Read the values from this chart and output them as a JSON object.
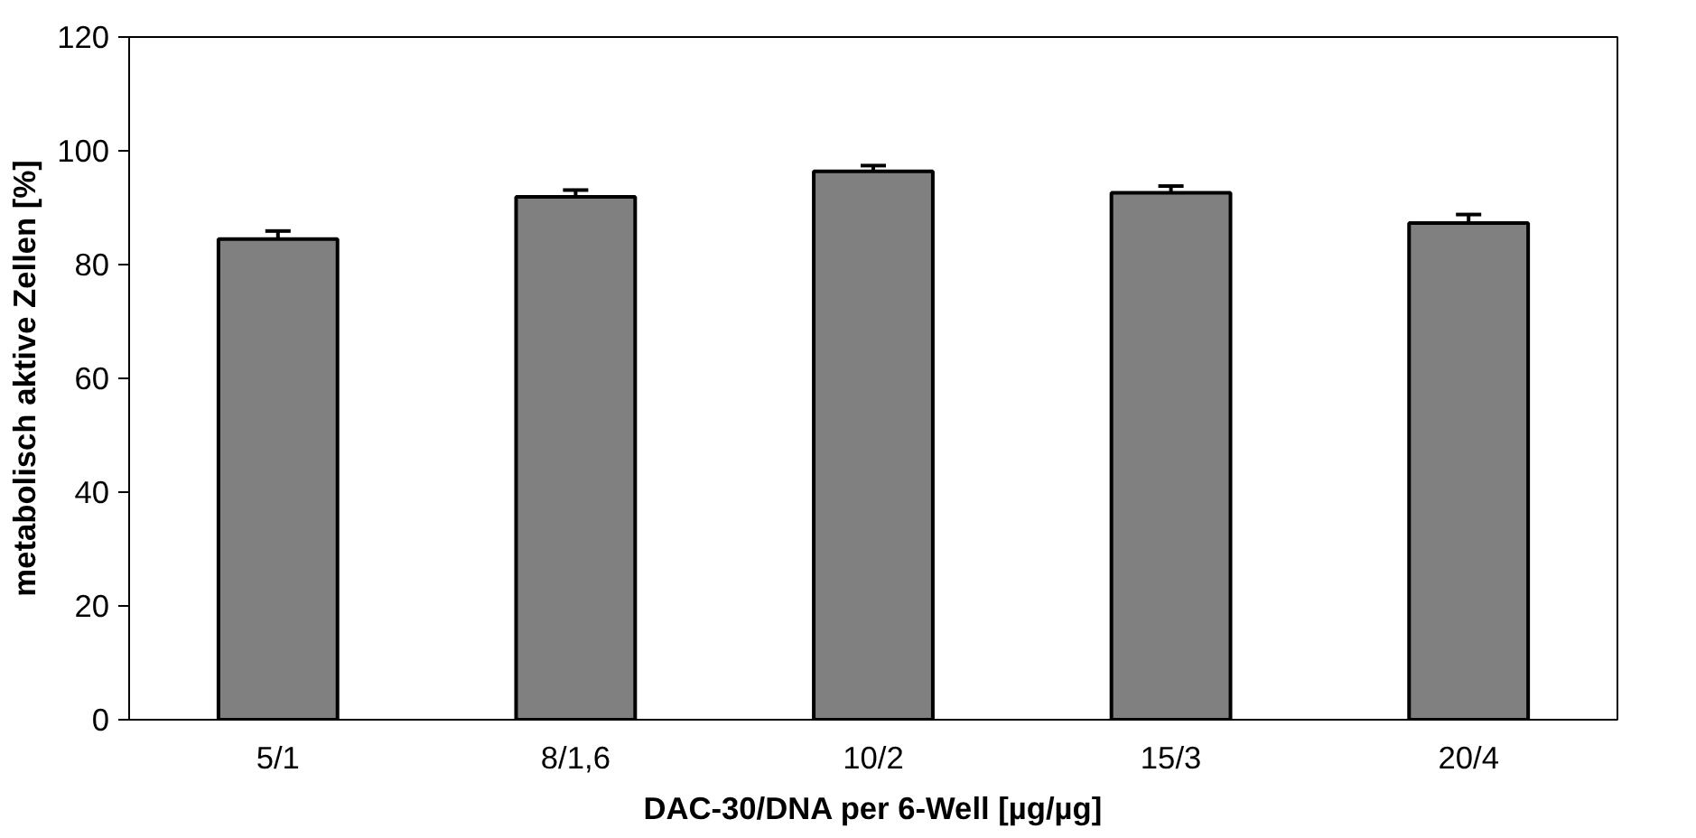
{
  "chart_data": {
    "type": "bar",
    "xlabel": "DAC-30/DNA per 6-Well [µg/µg]",
    "ylabel": "metabolisch aktive Zellen [%]",
    "categories": [
      "5/1",
      "8/1,6",
      "10/2",
      "15/3",
      "20/4"
    ],
    "values": [
      84.5,
      91.9,
      96.4,
      92.6,
      87.3
    ],
    "errors": [
      1.4,
      1.2,
      1.0,
      1.2,
      1.5
    ],
    "color": "#808080",
    "ylim": [
      0,
      120
    ],
    "yticks": [
      0,
      20,
      40,
      60,
      80,
      100,
      120
    ],
    "grid": false
  }
}
